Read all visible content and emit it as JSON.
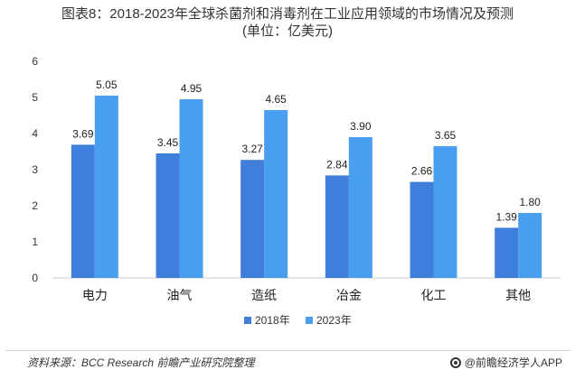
{
  "chart_data": {
    "type": "bar",
    "title": "图表8：2018-2023年全球杀菌剂和消毒剂在工业应用领域的市场情况及预测",
    "subtitle": "(单位：亿美元)",
    "categories": [
      "电力",
      "油气",
      "造纸",
      "冶金",
      "化工",
      "其他"
    ],
    "series": [
      {
        "name": "2018年",
        "values": [
          3.69,
          3.45,
          3.27,
          2.84,
          2.66,
          1.39
        ],
        "color": "#3f7fdb"
      },
      {
        "name": "2023年",
        "values": [
          5.05,
          4.95,
          4.65,
          3.9,
          3.65,
          1.8
        ],
        "color": "#4a9ef0"
      }
    ],
    "ylim": [
      0,
      6
    ],
    "yticks": [
      "0",
      "1",
      "2",
      "3",
      "4",
      "5",
      "6"
    ],
    "xlabel": "",
    "ylabel": "",
    "grid": false,
    "legend_position": "bottom"
  },
  "source": "资料来源：BCC Research 前瞻产业研究院整理",
  "brand": "@前瞻经济学人APP"
}
